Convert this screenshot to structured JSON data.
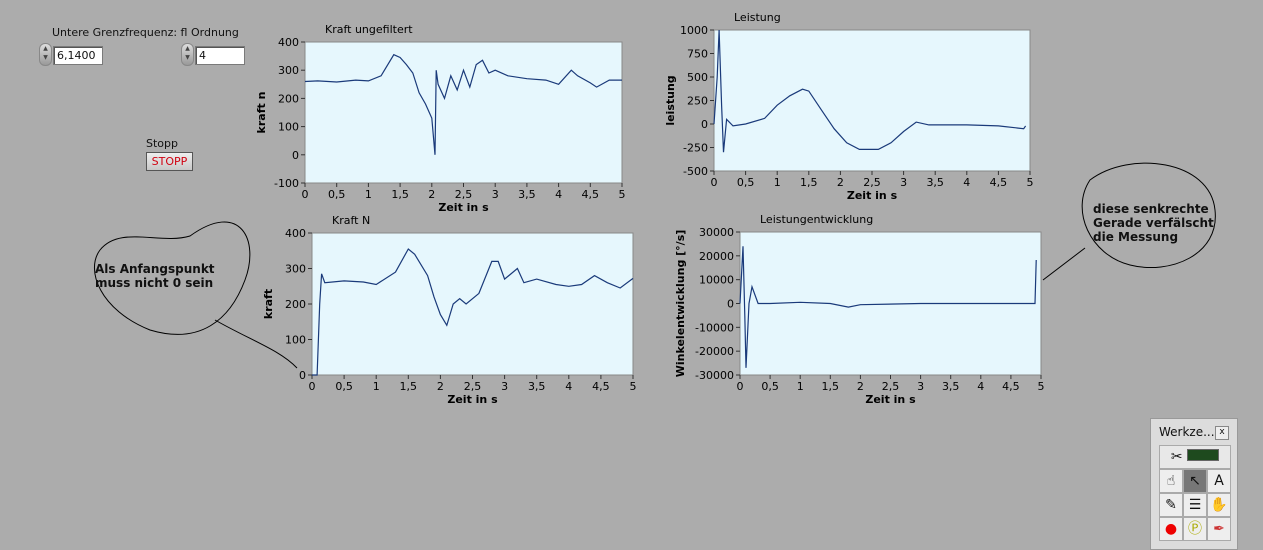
{
  "controls": {
    "freq_label": "Untere Grenzfrequenz: fl",
    "freq_value": "6,1400",
    "order_label": "Ordnung",
    "order_value": "4",
    "stop_label": "Stopp",
    "stop_button": "STOPP"
  },
  "annotations": {
    "left": "Als Anfangspunkt muss nicht 0 sein",
    "right": "diese senkrechte Gerade verfälscht die Messung"
  },
  "toolbox": {
    "title": "Werkze...",
    "close": "x"
  },
  "chart_data": [
    {
      "id": "c1",
      "type": "line",
      "title": "Kraft ungefiltert",
      "xlabel": "Zeit in s",
      "ylabel": "kraft n",
      "xlim": [
        0,
        5
      ],
      "ylim": [
        -100,
        400
      ],
      "xticks": [
        "0",
        "0,5",
        "1",
        "1,5",
        "2",
        "2,5",
        "3",
        "3,5",
        "4",
        "4,5",
        "5"
      ],
      "yticks": [
        "400",
        "300",
        "200",
        "100",
        "0",
        "-100"
      ],
      "x": [
        0,
        0.2,
        0.5,
        0.8,
        1,
        1.2,
        1.4,
        1.5,
        1.6,
        1.7,
        1.8,
        1.9,
        2.0,
        2.05,
        2.07,
        2.1,
        2.2,
        2.3,
        2.4,
        2.5,
        2.6,
        2.7,
        2.8,
        2.9,
        3.0,
        3.2,
        3.5,
        3.8,
        4.0,
        4.2,
        4.3,
        4.5,
        4.6,
        4.8,
        5
      ],
      "y": [
        260,
        262,
        258,
        265,
        262,
        280,
        355,
        345,
        320,
        290,
        220,
        180,
        130,
        0,
        300,
        250,
        200,
        280,
        230,
        300,
        240,
        320,
        335,
        290,
        300,
        280,
        270,
        265,
        250,
        300,
        280,
        255,
        240,
        265,
        265
      ]
    },
    {
      "id": "c2",
      "type": "line",
      "title": "Leistung",
      "xlabel": "Zeit in s",
      "ylabel": "leistung",
      "xlim": [
        0,
        5
      ],
      "ylim": [
        -500,
        1000
      ],
      "xticks": [
        "0",
        "0,5",
        "1",
        "1,5",
        "2",
        "2,5",
        "3",
        "3,5",
        "4",
        "4,5",
        "5"
      ],
      "yticks": [
        "1000",
        "750",
        "500",
        "250",
        "0",
        "-250",
        "-500"
      ],
      "x": [
        0,
        0.05,
        0.08,
        0.12,
        0.15,
        0.2,
        0.3,
        0.5,
        0.8,
        1.0,
        1.2,
        1.4,
        1.5,
        1.7,
        1.9,
        2.1,
        2.3,
        2.6,
        2.8,
        3.0,
        3.2,
        3.4,
        4.0,
        4.5,
        4.9,
        4.93
      ],
      "y": [
        0,
        500,
        1000,
        200,
        -300,
        50,
        -20,
        0,
        60,
        200,
        300,
        370,
        350,
        150,
        -50,
        -200,
        -270,
        -270,
        -200,
        -80,
        20,
        -10,
        -10,
        -20,
        -50,
        -20
      ]
    },
    {
      "id": "c3",
      "type": "line",
      "title": "Kraft N",
      "xlabel": "Zeit in s",
      "ylabel": "kraft",
      "xlim": [
        0,
        5
      ],
      "ylim": [
        0,
        400
      ],
      "xticks": [
        "0",
        "0,5",
        "1",
        "1,5",
        "2",
        "2,5",
        "3",
        "3,5",
        "4",
        "4,5",
        "5"
      ],
      "yticks": [
        "400",
        "300",
        "200",
        "100",
        "0"
      ],
      "x": [
        0,
        0.08,
        0.12,
        0.15,
        0.2,
        0.5,
        0.8,
        1.0,
        1.3,
        1.5,
        1.6,
        1.8,
        1.9,
        2.0,
        2.1,
        2.2,
        2.3,
        2.4,
        2.6,
        2.8,
        2.9,
        3.0,
        3.2,
        3.3,
        3.5,
        3.8,
        4.0,
        4.2,
        4.4,
        4.6,
        4.8,
        5
      ],
      "y": [
        0,
        0,
        200,
        285,
        260,
        265,
        262,
        255,
        290,
        355,
        340,
        280,
        220,
        170,
        140,
        200,
        215,
        200,
        230,
        320,
        320,
        270,
        300,
        260,
        270,
        255,
        250,
        255,
        280,
        260,
        245,
        272
      ]
    },
    {
      "id": "c4",
      "type": "line",
      "title": "Leistungentwicklung",
      "xlabel": "Zeit in s",
      "ylabel": "Winkelentwicklung [°/s]",
      "xlim": [
        0,
        5
      ],
      "ylim": [
        -30000,
        30000
      ],
      "xticks": [
        "0",
        "0,5",
        "1",
        "1,5",
        "2",
        "2,5",
        "3",
        "3,5",
        "4",
        "4,5",
        "5"
      ],
      "yticks": [
        "30000",
        "20000",
        "10000",
        "0",
        "-10000",
        "-20000",
        "-30000"
      ],
      "x": [
        0,
        0.05,
        0.08,
        0.1,
        0.15,
        0.2,
        0.3,
        0.5,
        1,
        1.5,
        1.8,
        2.0,
        3.0,
        4.9,
        4.92,
        4.93
      ],
      "y": [
        0,
        24000,
        -5000,
        -27000,
        0,
        7000,
        0,
        0,
        500,
        0,
        -1500,
        -500,
        0,
        0,
        18000,
        18000
      ]
    }
  ],
  "colors": {
    "plot_bg": "#e6f7fd",
    "line": "#1a3a7a",
    "panel": "#acacac"
  }
}
